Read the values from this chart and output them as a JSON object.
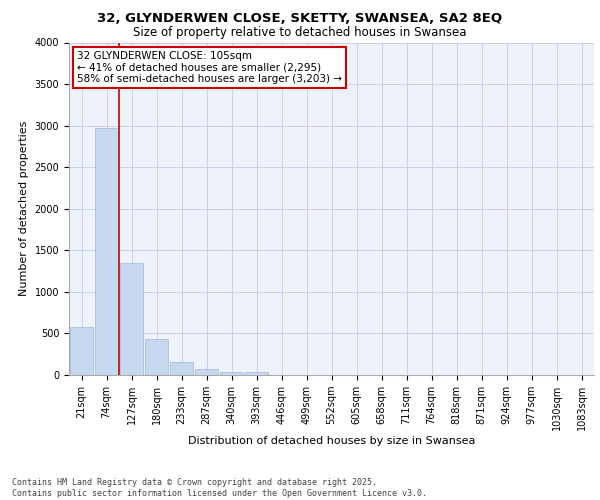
{
  "title1": "32, GLYNDERWEN CLOSE, SKETTY, SWANSEA, SA2 8EQ",
  "title2": "Size of property relative to detached houses in Swansea",
  "xlabel": "Distribution of detached houses by size in Swansea",
  "ylabel": "Number of detached properties",
  "categories": [
    "21sqm",
    "74sqm",
    "127sqm",
    "180sqm",
    "233sqm",
    "287sqm",
    "340sqm",
    "393sqm",
    "446sqm",
    "499sqm",
    "552sqm",
    "605sqm",
    "658sqm",
    "711sqm",
    "764sqm",
    "818sqm",
    "871sqm",
    "924sqm",
    "977sqm",
    "1030sqm",
    "1083sqm"
  ],
  "values": [
    580,
    2970,
    1350,
    430,
    160,
    75,
    40,
    35,
    0,
    0,
    0,
    0,
    0,
    0,
    0,
    0,
    0,
    0,
    0,
    0,
    0
  ],
  "bar_color": "#c5d8f0",
  "bar_edge_color": "#a0b8d8",
  "vline_x_idx": 1,
  "vline_color": "#cc0000",
  "annotation_text": "32 GLYNDERWEN CLOSE: 105sqm\n← 41% of detached houses are smaller (2,295)\n58% of semi-detached houses are larger (3,203) →",
  "annotation_box_color": "#ffffff",
  "annotation_box_edge": "#cc0000",
  "ylim": [
    0,
    4000
  ],
  "yticks": [
    0,
    500,
    1000,
    1500,
    2000,
    2500,
    3000,
    3500,
    4000
  ],
  "footer_line1": "Contains HM Land Registry data © Crown copyright and database right 2025.",
  "footer_line2": "Contains public sector information licensed under the Open Government Licence v3.0.",
  "bg_color": "#eef2fb",
  "grid_color": "#c8d0e8",
  "title1_fontsize": 9.5,
  "title2_fontsize": 8.5,
  "xlabel_fontsize": 8,
  "ylabel_fontsize": 8,
  "tick_fontsize": 7,
  "annotation_fontsize": 7.5,
  "footer_fontsize": 6
}
